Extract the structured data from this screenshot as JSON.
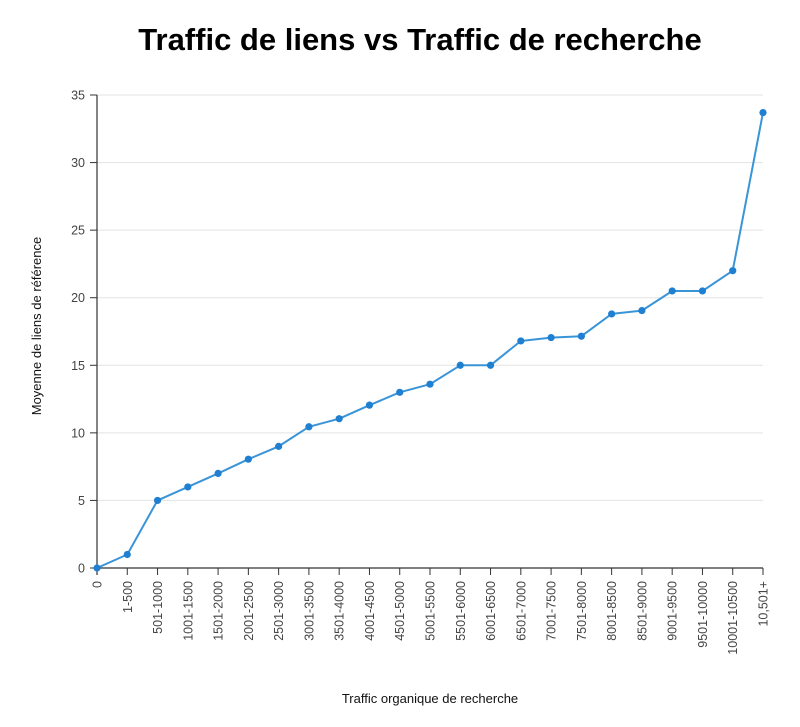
{
  "chart_data": {
    "type": "line",
    "title": "Traffic de liens vs Traffic de recherche",
    "xlabel": "Traffic organique de recherche",
    "ylabel": "Moyenne de liens de référence",
    "categories": [
      "0",
      "1-500",
      "501-1000",
      "1001-1500",
      "1501-2000",
      "2001-2500",
      "2501-3000",
      "3001-3500",
      "3501-4000",
      "4001-4500",
      "4501-5000",
      "5001-5500",
      "5501-6000",
      "6001-6500",
      "6501-7000",
      "7001-7500",
      "7501-8000",
      "8001-8500",
      "8501-9000",
      "9001-9500",
      "9501-10000",
      "10001-10500",
      "10,501+"
    ],
    "values": [
      0,
      1,
      5,
      6,
      7,
      8.05,
      9,
      10.45,
      11.05,
      12.05,
      13,
      13.6,
      15,
      15,
      16.8,
      17.05,
      17.15,
      18.8,
      19.05,
      20.5,
      20.5,
      22,
      33.7
    ],
    "ylim": [
      0,
      35
    ],
    "yticks": [
      0,
      5,
      10,
      15,
      20,
      25,
      30,
      35
    ],
    "grid": true,
    "legend": "none",
    "colors": {
      "line": "#3a94d8",
      "marker": "#1f7fd0"
    }
  }
}
